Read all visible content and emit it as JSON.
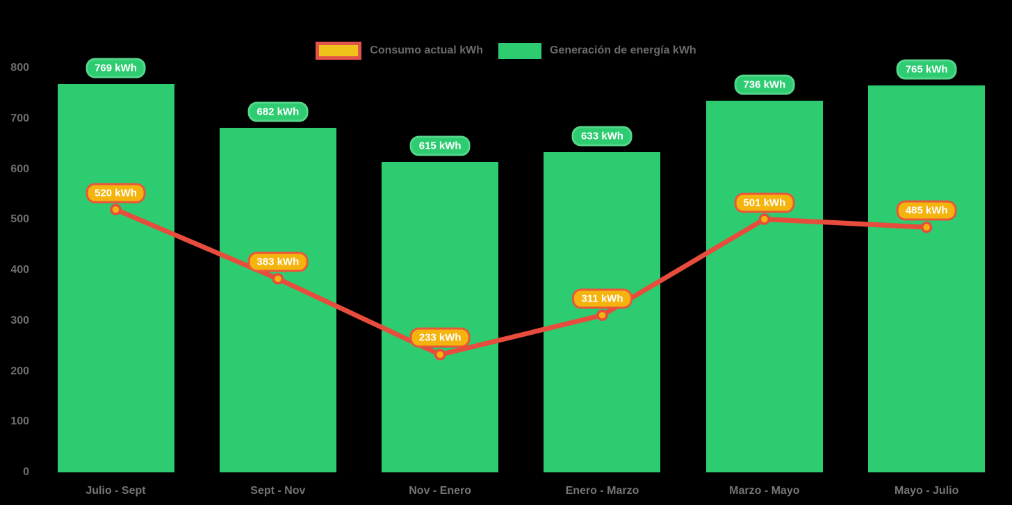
{
  "page": {
    "background": "#000000"
  },
  "legend": {
    "items": [
      {
        "label": "Consumo actual kWh",
        "swatch_fill": "#EFC319",
        "swatch_border": "#E2544B"
      },
      {
        "label": "Generación de energía kWh",
        "swatch_fill": "#2ECC71",
        "swatch_border": ""
      }
    ]
  },
  "chart_data": {
    "type": "bar",
    "categories": [
      "Julio - Sept",
      "Sept - Nov",
      "Nov - Enero",
      "Enero - Marzo",
      "Marzo - Mayo",
      "Mayo - Julio"
    ],
    "series": [
      {
        "name": "Consumo actual kWh",
        "type": "line",
        "values": [
          520,
          383,
          233,
          311,
          501,
          485
        ],
        "labels": [
          "520 kWh",
          "383 kWh",
          "233 kWh",
          "311 kWh",
          "501 kWh",
          "485 kWh"
        ],
        "line_color": "#E74C3C",
        "marker_fill": "#F5B40D",
        "marker_border": "#E74C3C",
        "badge_fill": "#F5B40D",
        "badge_border": "#E8563C"
      },
      {
        "name": "Generación de energía kWh",
        "type": "bar",
        "values": [
          769,
          682,
          615,
          633,
          736,
          765
        ],
        "labels": [
          "769 kWh",
          "682 kWh",
          "615 kWh",
          "633 kWh",
          "736 kWh",
          "765 kWh"
        ],
        "bar_color": "#2ECC71",
        "badge_fill": "#2ECC71",
        "badge_border": "#55D68B"
      }
    ],
    "title": "",
    "xlabel": "",
    "ylabel": "",
    "ylim": [
      0,
      800
    ],
    "yticks": [
      0,
      100,
      200,
      300,
      400,
      500,
      600,
      700,
      800
    ],
    "grid": false,
    "legend_position": "top-center",
    "tick_color": "#6E6E6E",
    "xtick_color": "#757575",
    "legend_text_color": "#6B6B6B",
    "background": "#000000"
  }
}
